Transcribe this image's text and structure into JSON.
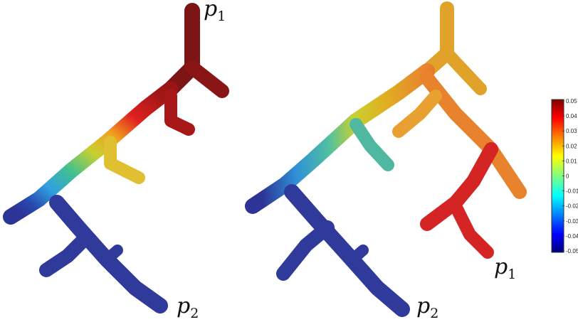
{
  "left_tree": {
    "label_top": {
      "base": "p",
      "sub": "1"
    },
    "label_bottom": {
      "base": "p",
      "sub": "2"
    }
  },
  "right_tree": {
    "label_right": {
      "base": "p",
      "sub": "1"
    },
    "label_bottom": {
      "base": "p",
      "sub": "2"
    }
  },
  "colorbar": {
    "ticks": [
      "0.05",
      "0.04",
      "0.03",
      "0.02",
      "0.01",
      "0",
      "-0.01",
      "-0.02",
      "-0.03",
      "-0.04",
      "-0.05"
    ],
    "min": -0.05,
    "max": 0.05,
    "colormap": "jet"
  }
}
